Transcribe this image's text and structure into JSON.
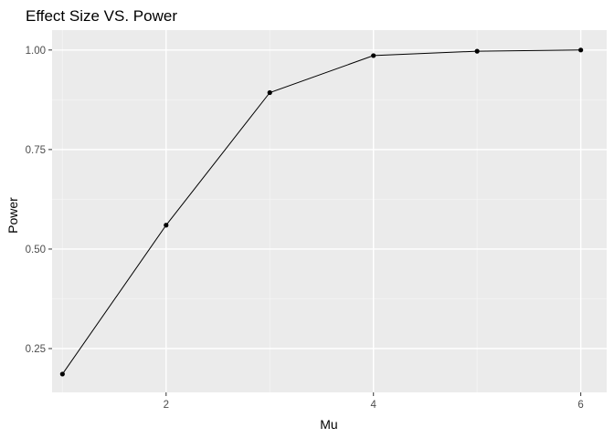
{
  "chart_data": {
    "type": "line",
    "title": "Effect Size VS. Power",
    "xlabel": "Mu",
    "ylabel": "Power",
    "x": [
      1,
      2,
      3,
      4,
      5,
      6
    ],
    "series": [
      {
        "values": [
          0.186,
          0.56,
          0.893,
          0.986,
          0.997,
          1.0
        ]
      }
    ],
    "xlim": [
      0.9,
      6.25
    ],
    "ylim": [
      0.14,
      1.05
    ],
    "xticks": [
      2,
      4,
      6
    ],
    "xtick_labels": [
      "2",
      "4",
      "6"
    ],
    "yticks": [
      0.25,
      0.5,
      0.75,
      1.0
    ],
    "ytick_labels": [
      "0.25",
      "0.50",
      "0.75",
      "1.00"
    ],
    "grid": true,
    "legend": "none",
    "colors": {
      "panel_background": "#ebebeb",
      "grid_major": "#ffffff",
      "grid_minor": "#f5f5f5",
      "line": "#000000",
      "point": "#000000"
    }
  }
}
